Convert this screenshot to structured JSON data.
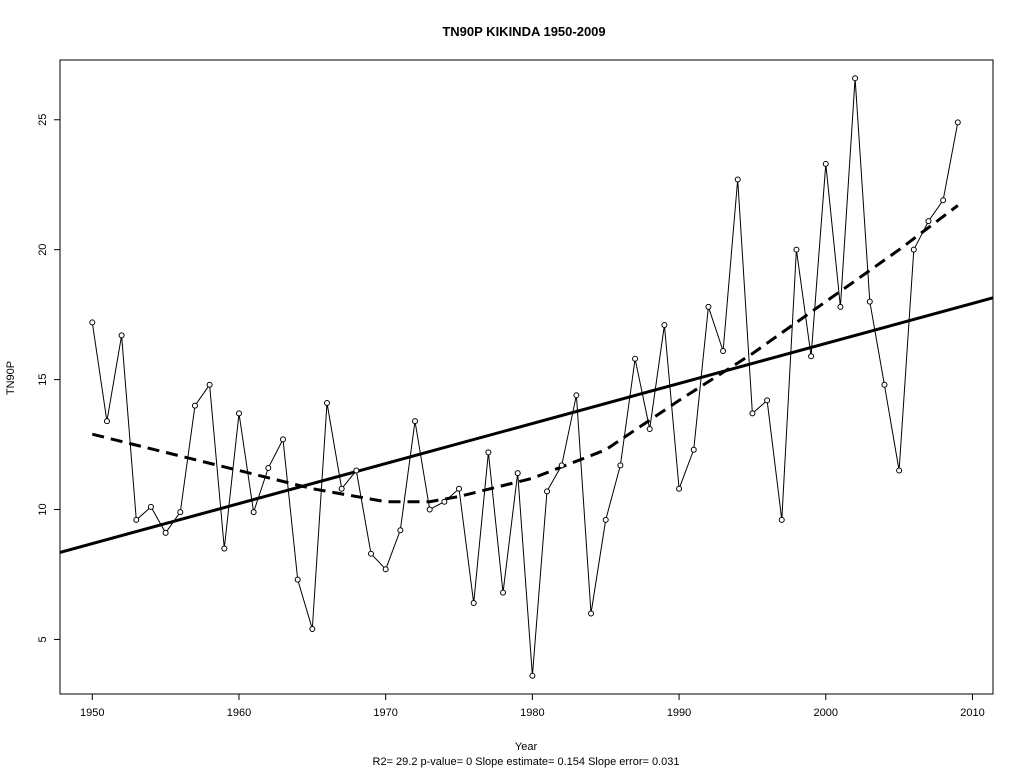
{
  "chart_data": {
    "type": "line",
    "title": "TN90P    KIKINDA 1950-2009",
    "xlabel": "Year",
    "ylabel": "TN90P",
    "footer": "R2= 29.2  p-value= 0  Slope estimate= 0.154  Slope error= 0.031",
    "xlim": [
      1947.8,
      2011.4
    ],
    "ylim": [
      2.9,
      27.3
    ],
    "xticks": [
      1950,
      1960,
      1970,
      1980,
      1990,
      2000,
      2010
    ],
    "yticks": [
      5,
      10,
      15,
      20,
      25
    ],
    "grid": false,
    "series": [
      {
        "style": "points-line",
        "x": [
          1950,
          1951,
          1952,
          1953,
          1954,
          1955,
          1956,
          1957,
          1958,
          1959,
          1960,
          1961,
          1962,
          1963,
          1964,
          1965,
          1966,
          1967,
          1968,
          1969,
          1970,
          1971,
          1972,
          1973,
          1974,
          1975,
          1976,
          1977,
          1978,
          1979,
          1980,
          1981,
          1982,
          1983,
          1984,
          1985,
          1986,
          1987,
          1988,
          1989,
          1990,
          1991,
          1992,
          1993,
          1994,
          1995,
          1996,
          1997,
          1998,
          1999,
          2000,
          2001,
          2002,
          2003,
          2004,
          2005,
          2006,
          2007,
          2008,
          2009
        ],
        "values": [
          17.2,
          13.4,
          16.7,
          9.6,
          10.1,
          9.1,
          9.9,
          14.0,
          14.8,
          8.5,
          13.7,
          9.9,
          11.6,
          12.7,
          7.3,
          5.4,
          14.1,
          10.8,
          11.5,
          8.3,
          7.7,
          9.2,
          13.4,
          10.0,
          10.3,
          10.8,
          6.4,
          12.2,
          6.8,
          11.4,
          3.6,
          10.7,
          11.7,
          14.4,
          6.0,
          9.6,
          11.7,
          15.8,
          13.1,
          17.1,
          10.8,
          12.3,
          17.8,
          16.1,
          22.7,
          13.7,
          14.2,
          9.6,
          20.0,
          15.9,
          23.3,
          17.8,
          26.6,
          18.0,
          14.8,
          11.5,
          20.0,
          21.1,
          21.9,
          24.9
        ]
      },
      {
        "style": "solid-trend",
        "x": [
          1947.8,
          2011.4
        ],
        "values": [
          8.35,
          18.15
        ]
      },
      {
        "style": "dashed-smooth",
        "x": [
          1950,
          1955,
          1960,
          1965,
          1970,
          1973,
          1975,
          1980,
          1985,
          1990,
          1995,
          2000,
          2005,
          2009
        ],
        "values": [
          12.9,
          12.2,
          11.5,
          10.8,
          10.3,
          10.3,
          10.5,
          11.2,
          12.3,
          14.2,
          16.0,
          18.0,
          20.0,
          21.7
        ]
      }
    ]
  }
}
